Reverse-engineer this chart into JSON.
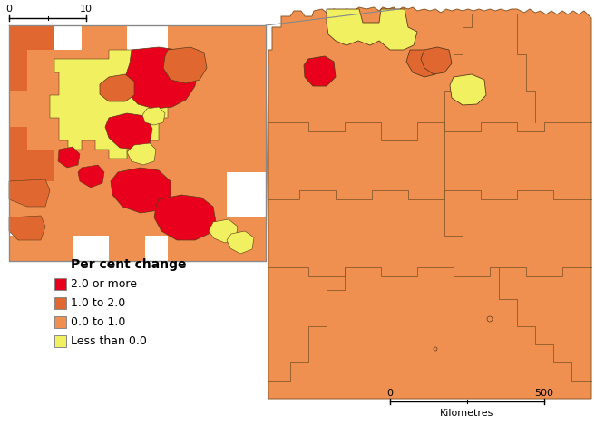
{
  "colors": {
    "red": "#e8001c",
    "orange_dark": "#e06830",
    "orange_light": "#f09050",
    "yellow": "#f0f060",
    "white": "#ffffff",
    "border": "#5a3a1a",
    "border_light": "#8a5a2a",
    "connector": "#888888"
  },
  "legend": {
    "title": "Per cent change",
    "items": [
      {
        "label": "2.0 or more",
        "color": "#e8001c"
      },
      {
        "label": "1.0 to 2.0",
        "color": "#e06830"
      },
      {
        "label": "0.0 to 1.0",
        "color": "#f09050"
      },
      {
        "label": "Less than 0.0",
        "color": "#f0f060"
      }
    ]
  },
  "font_size": 9,
  "legend_title_fontsize": 10
}
